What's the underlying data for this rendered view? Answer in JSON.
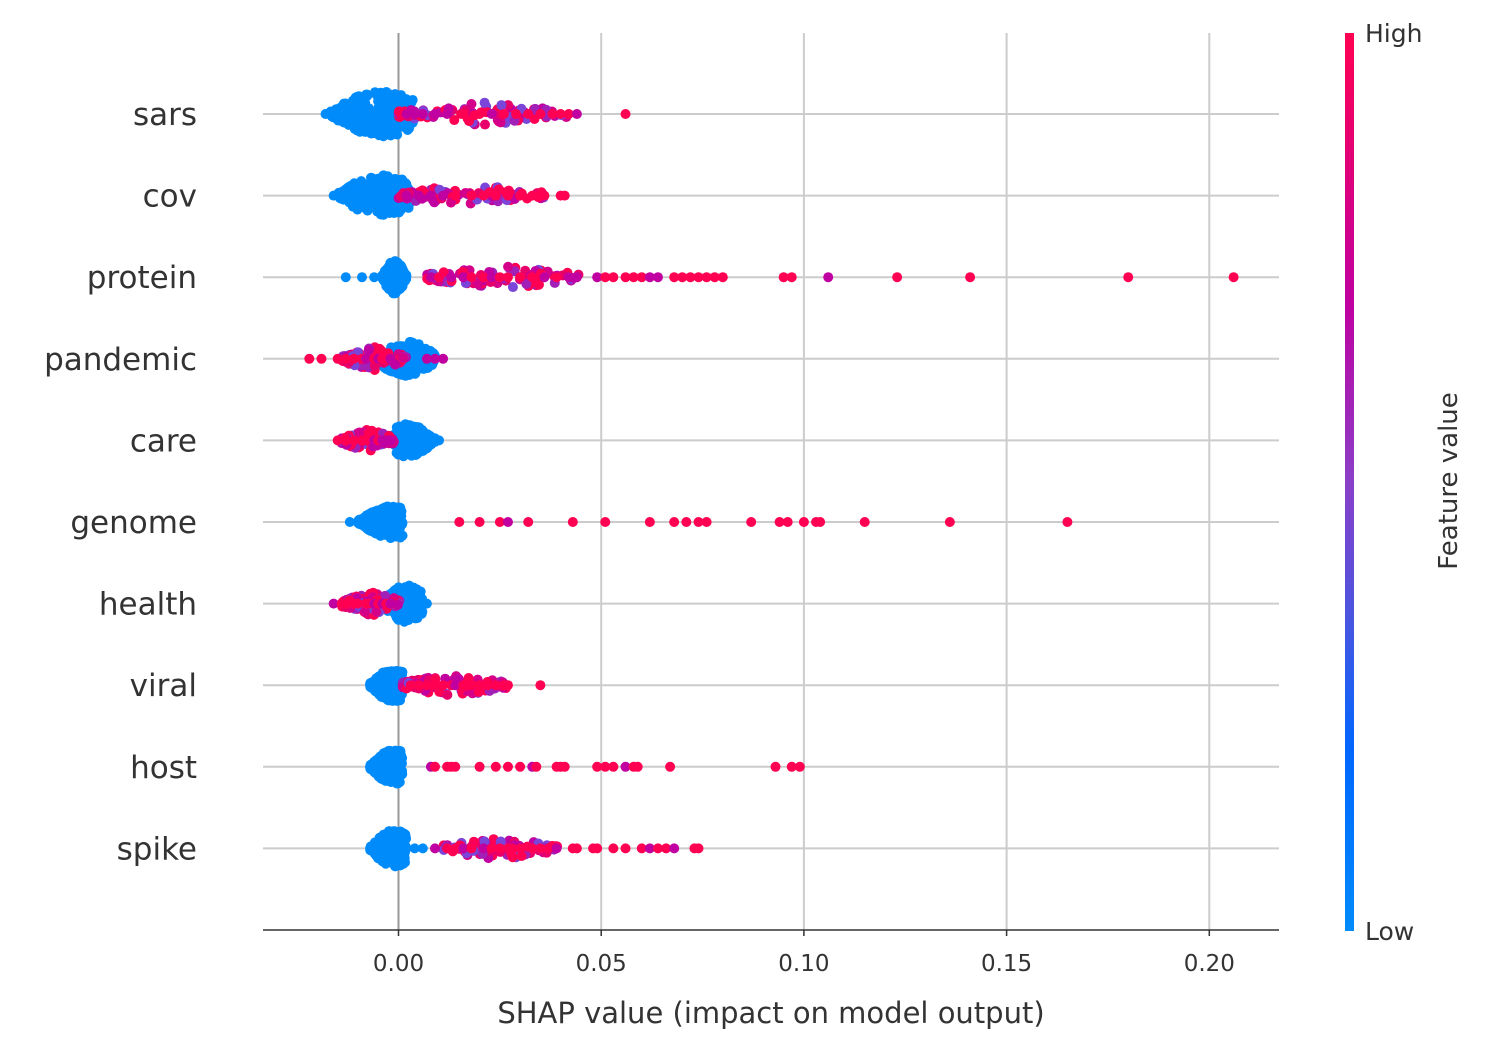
{
  "chart_data": {
    "type": "scatter",
    "subtype": "shap-beeswarm",
    "xlabel": "SHAP value (impact on model output)",
    "xlim": [
      -0.034,
      0.216
    ],
    "xticks": [
      0.0,
      0.05,
      0.1,
      0.15,
      0.2
    ],
    "xtick_labels": [
      "0.00",
      "0.05",
      "0.10",
      "0.15",
      "0.20"
    ],
    "zero_line": 0.0,
    "grid": true,
    "colors": {
      "low": "#008bfb",
      "mid": "#c000a0",
      "high": "#ff0052",
      "grid": "#cccccc",
      "zero": "#999999"
    },
    "colorbar": {
      "title": "Feature value",
      "high_label": "High",
      "low_label": "Low"
    },
    "features": [
      {
        "name": "sars",
        "cluster": {
          "center": -0.004,
          "min": -0.017,
          "max": 0.004,
          "halfwidth": 0.55,
          "color": "low"
        },
        "mixed": {
          "min": 0.0,
          "max": 0.042
        },
        "points": [
          [
            -0.018,
            "low"
          ],
          [
            -0.014,
            "low"
          ],
          [
            -0.012,
            "low"
          ],
          [
            -0.009,
            "low"
          ],
          [
            0.002,
            "mid"
          ],
          [
            0.004,
            "mid"
          ],
          [
            0.006,
            "mid"
          ],
          [
            0.009,
            "mid"
          ],
          [
            0.012,
            "mid"
          ],
          [
            0.016,
            "high"
          ],
          [
            0.02,
            "high"
          ],
          [
            0.023,
            "mid"
          ],
          [
            0.026,
            "high"
          ],
          [
            0.029,
            "high"
          ],
          [
            0.032,
            "high"
          ],
          [
            0.035,
            "high"
          ],
          [
            0.038,
            "high"
          ],
          [
            0.04,
            "high"
          ],
          [
            0.042,
            "high"
          ],
          [
            0.044,
            "mid"
          ],
          [
            0.056,
            "high"
          ]
        ]
      },
      {
        "name": "cov",
        "cluster": {
          "center": -0.004,
          "min": -0.015,
          "max": 0.003,
          "halfwidth": 0.5,
          "color": "low"
        },
        "mixed": {
          "min": 0.0,
          "max": 0.036
        },
        "points": [
          [
            -0.016,
            "low"
          ],
          [
            -0.013,
            "low"
          ],
          [
            -0.01,
            "low"
          ],
          [
            -0.008,
            "low"
          ],
          [
            0.002,
            "mid"
          ],
          [
            0.005,
            "mid"
          ],
          [
            0.008,
            "mid"
          ],
          [
            0.011,
            "mid"
          ],
          [
            0.014,
            "high"
          ],
          [
            0.018,
            "high"
          ],
          [
            0.021,
            "high"
          ],
          [
            0.024,
            "high"
          ],
          [
            0.027,
            "high"
          ],
          [
            0.03,
            "high"
          ],
          [
            0.033,
            "high"
          ],
          [
            0.036,
            "high"
          ],
          [
            0.04,
            "high"
          ],
          [
            0.041,
            "high"
          ]
        ]
      },
      {
        "name": "protein",
        "cluster": {
          "center": -0.001,
          "min": -0.004,
          "max": 0.002,
          "halfwidth": 0.4,
          "color": "low"
        },
        "mixed": {
          "min": 0.007,
          "max": 0.045
        },
        "points": [
          [
            -0.013,
            "low"
          ],
          [
            -0.009,
            "low"
          ],
          [
            -0.006,
            "low"
          ],
          [
            0.008,
            "mid"
          ],
          [
            0.01,
            "high"
          ],
          [
            0.013,
            "mid"
          ],
          [
            0.016,
            "mid"
          ],
          [
            0.018,
            "high"
          ],
          [
            0.021,
            "high"
          ],
          [
            0.023,
            "mid"
          ],
          [
            0.025,
            "high"
          ],
          [
            0.027,
            "high"
          ],
          [
            0.03,
            "high"
          ],
          [
            0.033,
            "high"
          ],
          [
            0.036,
            "mid"
          ],
          [
            0.039,
            "high"
          ],
          [
            0.042,
            "mid"
          ],
          [
            0.044,
            "mid"
          ],
          [
            0.049,
            "mid"
          ],
          [
            0.051,
            "high"
          ],
          [
            0.053,
            "high"
          ],
          [
            0.056,
            "high"
          ],
          [
            0.058,
            "high"
          ],
          [
            0.06,
            "high"
          ],
          [
            0.062,
            "mid"
          ],
          [
            0.064,
            "mid"
          ],
          [
            0.068,
            "high"
          ],
          [
            0.07,
            "high"
          ],
          [
            0.072,
            "high"
          ],
          [
            0.074,
            "high"
          ],
          [
            0.076,
            "high"
          ],
          [
            0.078,
            "high"
          ],
          [
            0.08,
            "high"
          ],
          [
            0.095,
            "high"
          ],
          [
            0.097,
            "high"
          ],
          [
            0.106,
            "mid"
          ],
          [
            0.123,
            "high"
          ],
          [
            0.141,
            "high"
          ],
          [
            0.18,
            "high"
          ],
          [
            0.206,
            "high"
          ]
        ]
      },
      {
        "name": "pandemic",
        "cluster": {
          "center": 0.002,
          "min": -0.006,
          "max": 0.009,
          "halfwidth": 0.42,
          "color": "low"
        },
        "mixed": {
          "min": -0.014,
          "max": 0.002
        },
        "points": [
          [
            -0.022,
            "high"
          ],
          [
            -0.019,
            "high"
          ],
          [
            -0.015,
            "high"
          ],
          [
            -0.013,
            "high"
          ],
          [
            -0.011,
            "high"
          ],
          [
            -0.009,
            "high"
          ],
          [
            -0.008,
            "mid"
          ],
          [
            -0.006,
            "high"
          ],
          [
            -0.005,
            "mid"
          ],
          [
            -0.004,
            "high"
          ],
          [
            -0.003,
            "high"
          ],
          [
            -0.002,
            "mid"
          ],
          [
            0.007,
            "mid"
          ],
          [
            0.009,
            "mid"
          ],
          [
            0.011,
            "mid"
          ]
        ]
      },
      {
        "name": "care",
        "cluster": {
          "center": 0.002,
          "min": -0.001,
          "max": 0.009,
          "halfwidth": 0.4,
          "color": "low"
        },
        "mixed": {
          "min": -0.014,
          "max": -0.001
        },
        "points": [
          [
            -0.015,
            "high"
          ],
          [
            -0.013,
            "high"
          ],
          [
            -0.011,
            "high"
          ],
          [
            -0.009,
            "high"
          ],
          [
            -0.008,
            "high"
          ],
          [
            -0.006,
            "mid"
          ],
          [
            -0.005,
            "high"
          ],
          [
            -0.004,
            "mid"
          ],
          [
            -0.003,
            "mid"
          ],
          [
            -0.002,
            "mid"
          ],
          [
            0.006,
            "low"
          ],
          [
            0.008,
            "low"
          ],
          [
            0.01,
            "low"
          ]
        ]
      },
      {
        "name": "genome",
        "cluster": {
          "center": -0.001,
          "min": -0.01,
          "max": 0.001,
          "halfwidth": 0.4,
          "color": "low"
        },
        "mixed": null,
        "points": [
          [
            -0.012,
            "low"
          ],
          [
            -0.009,
            "low"
          ],
          [
            -0.007,
            "low"
          ],
          [
            0.015,
            "high"
          ],
          [
            0.02,
            "high"
          ],
          [
            0.025,
            "high"
          ],
          [
            0.027,
            "mid"
          ],
          [
            0.032,
            "high"
          ],
          [
            0.043,
            "high"
          ],
          [
            0.051,
            "high"
          ],
          [
            0.062,
            "high"
          ],
          [
            0.068,
            "high"
          ],
          [
            0.071,
            "high"
          ],
          [
            0.074,
            "high"
          ],
          [
            0.076,
            "high"
          ],
          [
            0.087,
            "high"
          ],
          [
            0.094,
            "high"
          ],
          [
            0.096,
            "high"
          ],
          [
            0.1,
            "high"
          ],
          [
            0.103,
            "high"
          ],
          [
            0.104,
            "high"
          ],
          [
            0.115,
            "high"
          ],
          [
            0.136,
            "high"
          ],
          [
            0.165,
            "high"
          ]
        ]
      },
      {
        "name": "health",
        "cluster": {
          "center": 0.002,
          "min": -0.004,
          "max": 0.006,
          "halfwidth": 0.45,
          "color": "low"
        },
        "mixed": {
          "min": -0.014,
          "max": 0.001
        },
        "points": [
          [
            -0.016,
            "mid"
          ],
          [
            -0.014,
            "high"
          ],
          [
            -0.013,
            "high"
          ],
          [
            -0.011,
            "high"
          ],
          [
            -0.01,
            "high"
          ],
          [
            -0.008,
            "high"
          ],
          [
            -0.007,
            "high"
          ],
          [
            -0.006,
            "mid"
          ],
          [
            -0.005,
            "high"
          ],
          [
            -0.004,
            "mid"
          ],
          [
            -0.003,
            "high"
          ],
          [
            -0.002,
            "mid"
          ],
          [
            0.007,
            "low"
          ]
        ]
      },
      {
        "name": "viral",
        "cluster": {
          "center": -0.001,
          "min": -0.007,
          "max": 0.001,
          "halfwidth": 0.4,
          "color": "low"
        },
        "mixed": {
          "min": 0.001,
          "max": 0.027
        },
        "points": [
          [
            -0.007,
            "low"
          ],
          [
            -0.005,
            "low"
          ],
          [
            0.003,
            "high"
          ],
          [
            0.005,
            "high"
          ],
          [
            0.007,
            "high"
          ],
          [
            0.009,
            "high"
          ],
          [
            0.011,
            "high"
          ],
          [
            0.013,
            "high"
          ],
          [
            0.014,
            "mid"
          ],
          [
            0.016,
            "high"
          ],
          [
            0.018,
            "high"
          ],
          [
            0.02,
            "high"
          ],
          [
            0.022,
            "high"
          ],
          [
            0.024,
            "high"
          ],
          [
            0.026,
            "high"
          ],
          [
            0.027,
            "high"
          ],
          [
            0.035,
            "high"
          ]
        ]
      },
      {
        "name": "host",
        "cluster": {
          "center": -0.001,
          "min": -0.007,
          "max": 0.001,
          "halfwidth": 0.42,
          "color": "low"
        },
        "mixed": null,
        "points": [
          [
            -0.007,
            "low"
          ],
          [
            -0.005,
            "low"
          ],
          [
            0.008,
            "mid"
          ],
          [
            0.009,
            "high"
          ],
          [
            0.012,
            "high"
          ],
          [
            0.013,
            "high"
          ],
          [
            0.014,
            "high"
          ],
          [
            0.02,
            "high"
          ],
          [
            0.024,
            "high"
          ],
          [
            0.027,
            "high"
          ],
          [
            0.03,
            "high"
          ],
          [
            0.033,
            "mid"
          ],
          [
            0.034,
            "high"
          ],
          [
            0.039,
            "high"
          ],
          [
            0.04,
            "high"
          ],
          [
            0.041,
            "high"
          ],
          [
            0.049,
            "high"
          ],
          [
            0.051,
            "high"
          ],
          [
            0.053,
            "high"
          ],
          [
            0.056,
            "mid"
          ],
          [
            0.058,
            "high"
          ],
          [
            0.059,
            "high"
          ],
          [
            0.067,
            "high"
          ],
          [
            0.093,
            "high"
          ],
          [
            0.097,
            "high"
          ],
          [
            0.099,
            "high"
          ]
        ]
      },
      {
        "name": "spike",
        "cluster": {
          "center": -0.001,
          "min": -0.007,
          "max": 0.002,
          "halfwidth": 0.45,
          "color": "low"
        },
        "mixed": {
          "min": 0.011,
          "max": 0.04
        },
        "points": [
          [
            -0.007,
            "low"
          ],
          [
            -0.005,
            "low"
          ],
          [
            0.004,
            "low"
          ],
          [
            0.006,
            "low"
          ],
          [
            0.009,
            "mid"
          ],
          [
            0.012,
            "high"
          ],
          [
            0.014,
            "high"
          ],
          [
            0.016,
            "mid"
          ],
          [
            0.018,
            "high"
          ],
          [
            0.021,
            "mid"
          ],
          [
            0.023,
            "high"
          ],
          [
            0.025,
            "high"
          ],
          [
            0.028,
            "high"
          ],
          [
            0.03,
            "high"
          ],
          [
            0.033,
            "high"
          ],
          [
            0.035,
            "high"
          ],
          [
            0.037,
            "high"
          ],
          [
            0.039,
            "mid"
          ],
          [
            0.043,
            "high"
          ],
          [
            0.044,
            "high"
          ],
          [
            0.048,
            "high"
          ],
          [
            0.049,
            "high"
          ],
          [
            0.053,
            "high"
          ],
          [
            0.056,
            "high"
          ],
          [
            0.06,
            "high"
          ],
          [
            0.062,
            "mid"
          ],
          [
            0.064,
            "high"
          ],
          [
            0.066,
            "high"
          ],
          [
            0.068,
            "mid"
          ],
          [
            0.073,
            "high"
          ],
          [
            0.074,
            "high"
          ]
        ]
      }
    ]
  }
}
